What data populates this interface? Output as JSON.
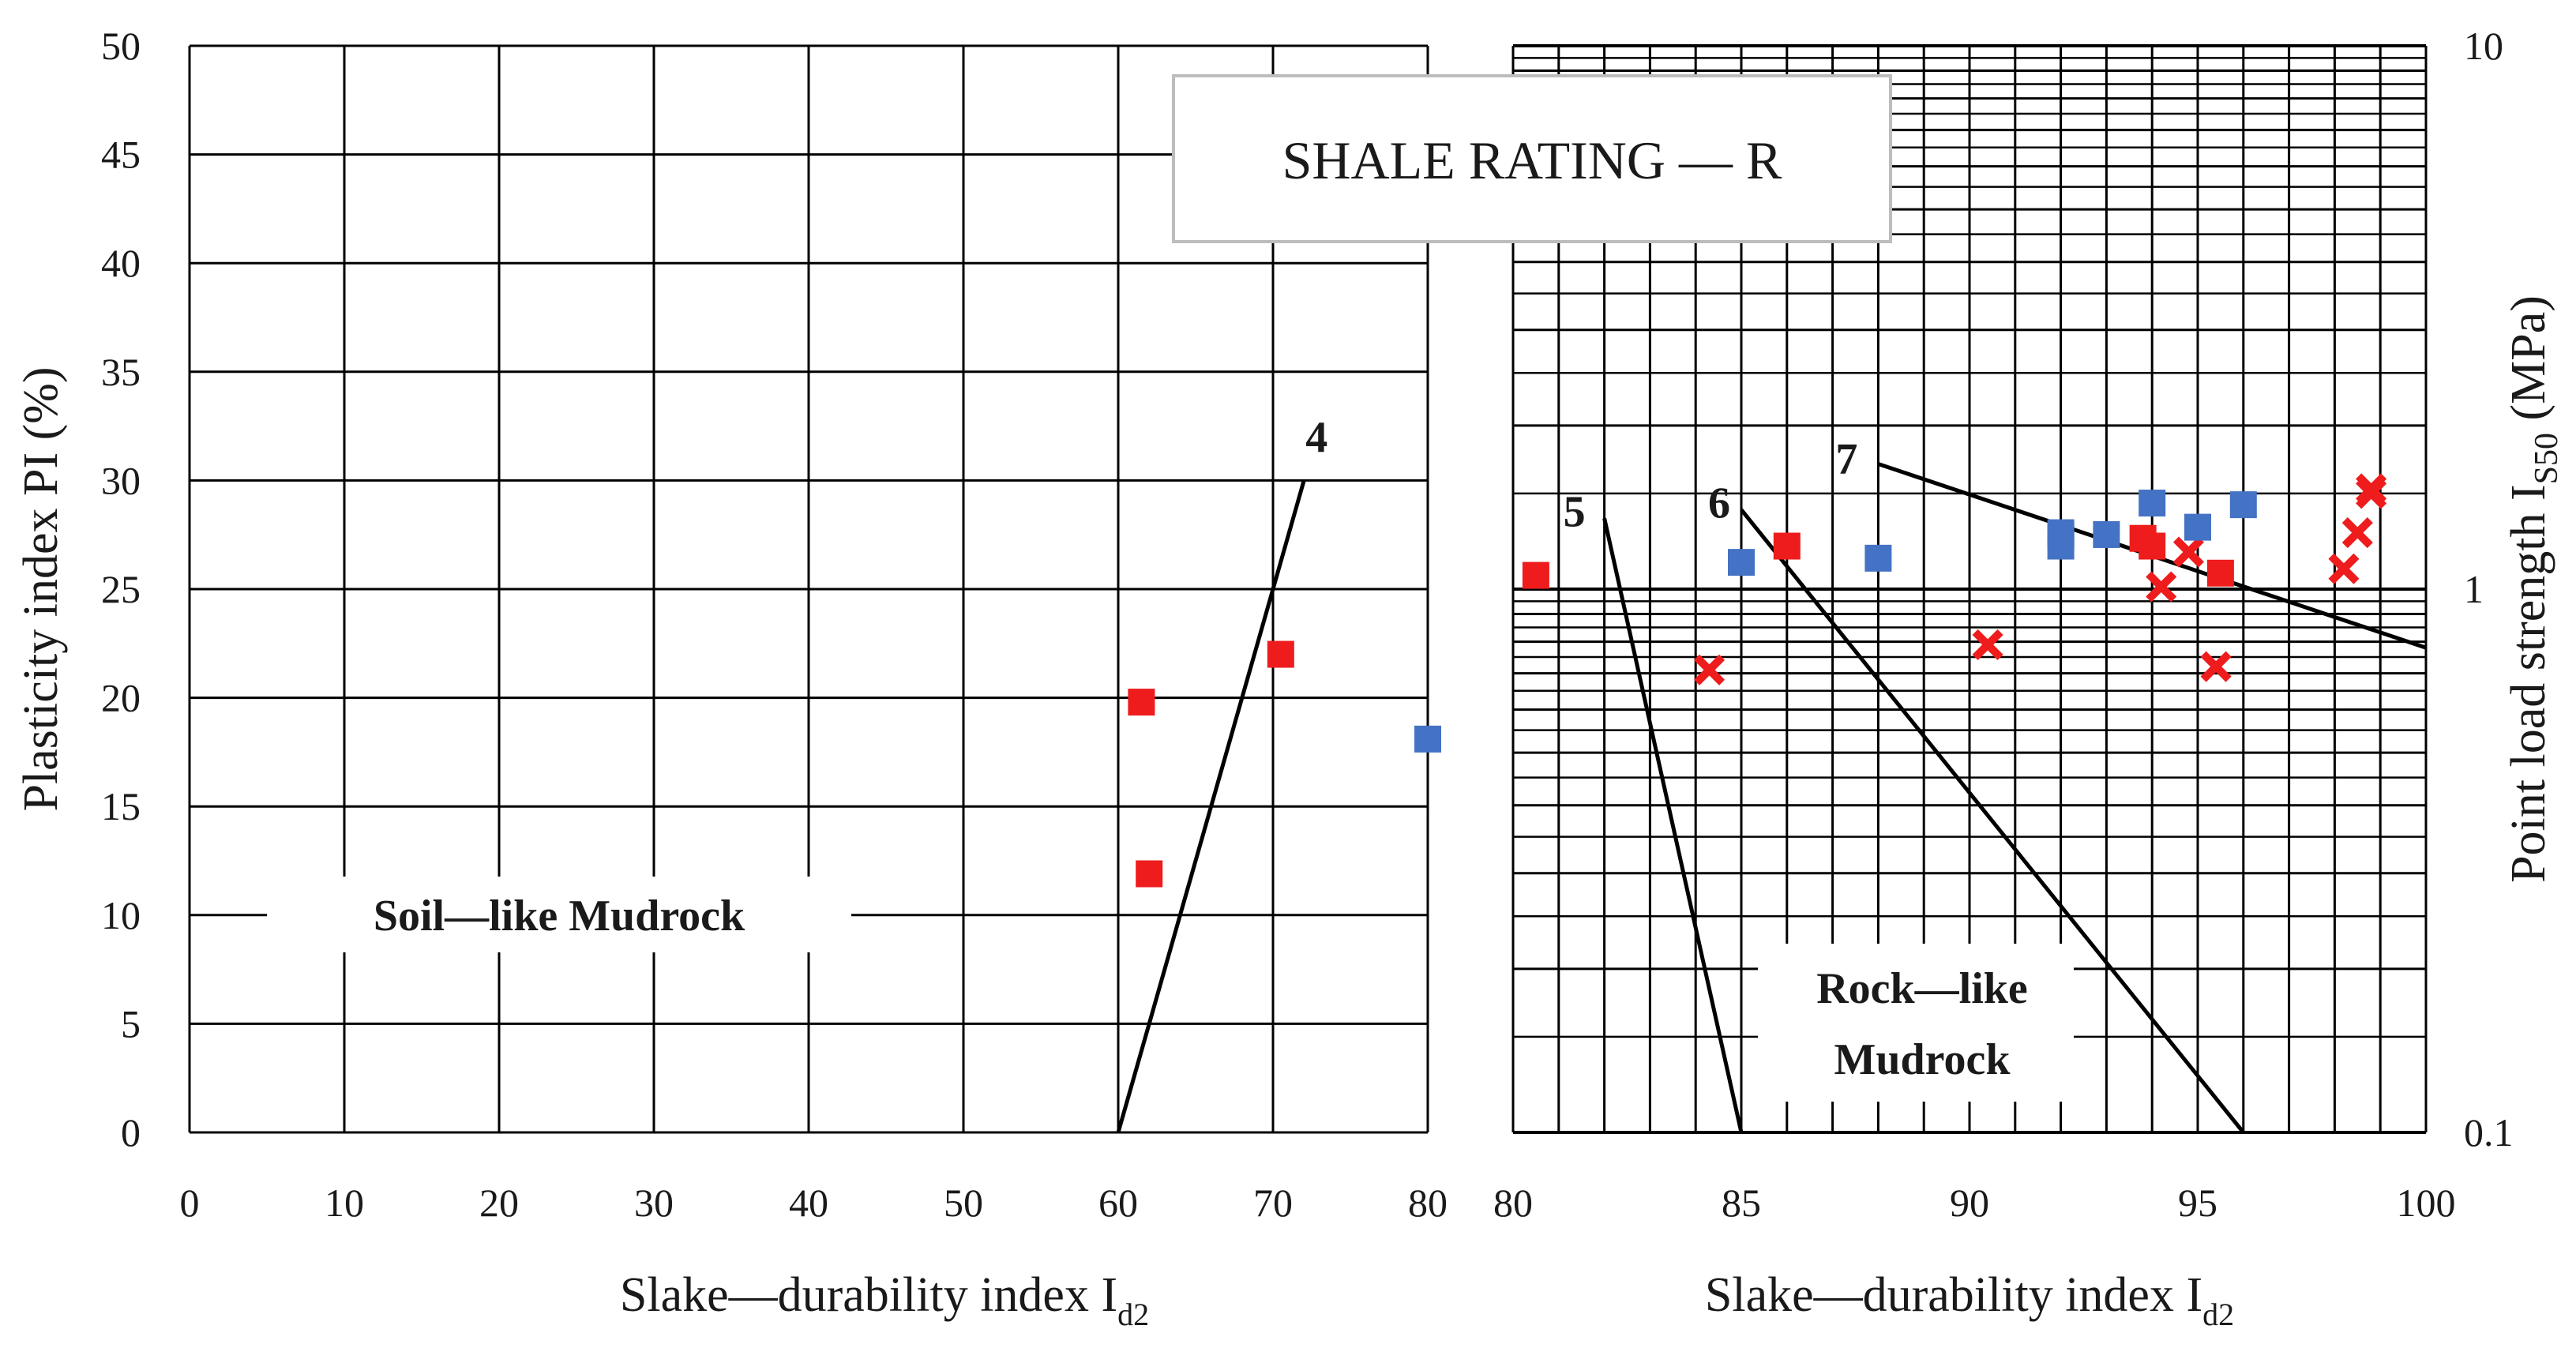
{
  "chart_data": [
    {
      "type": "scatter",
      "title": "",
      "xlabel": "Slake—durability index I",
      "xlabel_sub": "d2",
      "ylabel": "Plasticity index PI (%)",
      "xlim": [
        0,
        80
      ],
      "ylim": [
        0,
        50
      ],
      "x_ticks": [
        0,
        10,
        20,
        30,
        40,
        50,
        60,
        70,
        80
      ],
      "y_ticks": [
        0,
        5,
        10,
        15,
        20,
        25,
        30,
        35,
        40,
        45,
        50
      ],
      "grid": true,
      "region_label": "Soil—like Mudrock",
      "lines": [
        {
          "label": "4",
          "points": [
            [
              60,
              0
            ],
            [
              72,
              30
            ]
          ]
        }
      ],
      "series": [
        {
          "marker": "square",
          "color": "#ee1c1c",
          "points": [
            [
              61.5,
              19.8
            ],
            [
              62,
              11.9
            ],
            [
              70.5,
              22
            ]
          ]
        },
        {
          "marker": "square",
          "color": "#4472c4",
          "points": [
            [
              80,
              18.1
            ]
          ]
        }
      ]
    },
    {
      "type": "scatter",
      "title": "",
      "xlabel": "Slake—durability index I",
      "xlabel_sub": "d2",
      "ylabel": "Point load strength I",
      "ylabel_sub": "S50",
      "ylabel_unit": " (MPa)",
      "xlim": [
        80,
        100
      ],
      "ylim": [
        0.1,
        10
      ],
      "yscale": "log",
      "x_ticks": [
        80,
        85,
        90,
        95,
        100
      ],
      "y_ticks": [
        {
          "v": 0.1,
          "label": "0.1"
        },
        {
          "v": 1,
          "label": "1"
        },
        {
          "v": 10,
          "label": "10"
        }
      ],
      "grid": true,
      "region_label": [
        "Rock—like",
        "Mudrock"
      ],
      "annotation": "SHALE RATING — R",
      "lines": [
        {
          "label": "5",
          "points": [
            [
              82,
              1.35
            ],
            [
              85,
              0.1
            ]
          ]
        },
        {
          "label": "6",
          "points": [
            [
              85,
              1.4
            ],
            [
              96,
              0.1
            ]
          ]
        },
        {
          "label": "7",
          "points": [
            [
              88,
              1.7
            ],
            [
              100,
              0.78
            ]
          ]
        }
      ],
      "series": [
        {
          "marker": "square",
          "color": "#ee1c1c",
          "points": [
            [
              80.5,
              1.06
            ],
            [
              86,
              1.2
            ],
            [
              93.8,
              1.24
            ],
            [
              94,
              1.2
            ],
            [
              95.5,
              1.07
            ]
          ]
        },
        {
          "marker": "x",
          "color": "#ee1c1c",
          "points": [
            [
              84.3,
              0.71
            ],
            [
              90.4,
              0.79
            ],
            [
              94.2,
              1.01
            ],
            [
              94.8,
              1.17
            ],
            [
              95.4,
              0.72
            ],
            [
              98.2,
              1.09
            ],
            [
              98.5,
              1.27
            ],
            [
              98.8,
              1.5
            ],
            [
              98.8,
              1.53
            ]
          ]
        },
        {
          "marker": "square",
          "color": "#4472c4",
          "points": [
            [
              85,
              1.12
            ],
            [
              88,
              1.14
            ],
            [
              92,
              1.2
            ],
            [
              92,
              1.25
            ],
            [
              92,
              1.27
            ],
            [
              93,
              1.26
            ],
            [
              94,
              1.44
            ],
            [
              95,
              1.3
            ],
            [
              96,
              1.43
            ]
          ]
        }
      ]
    }
  ]
}
